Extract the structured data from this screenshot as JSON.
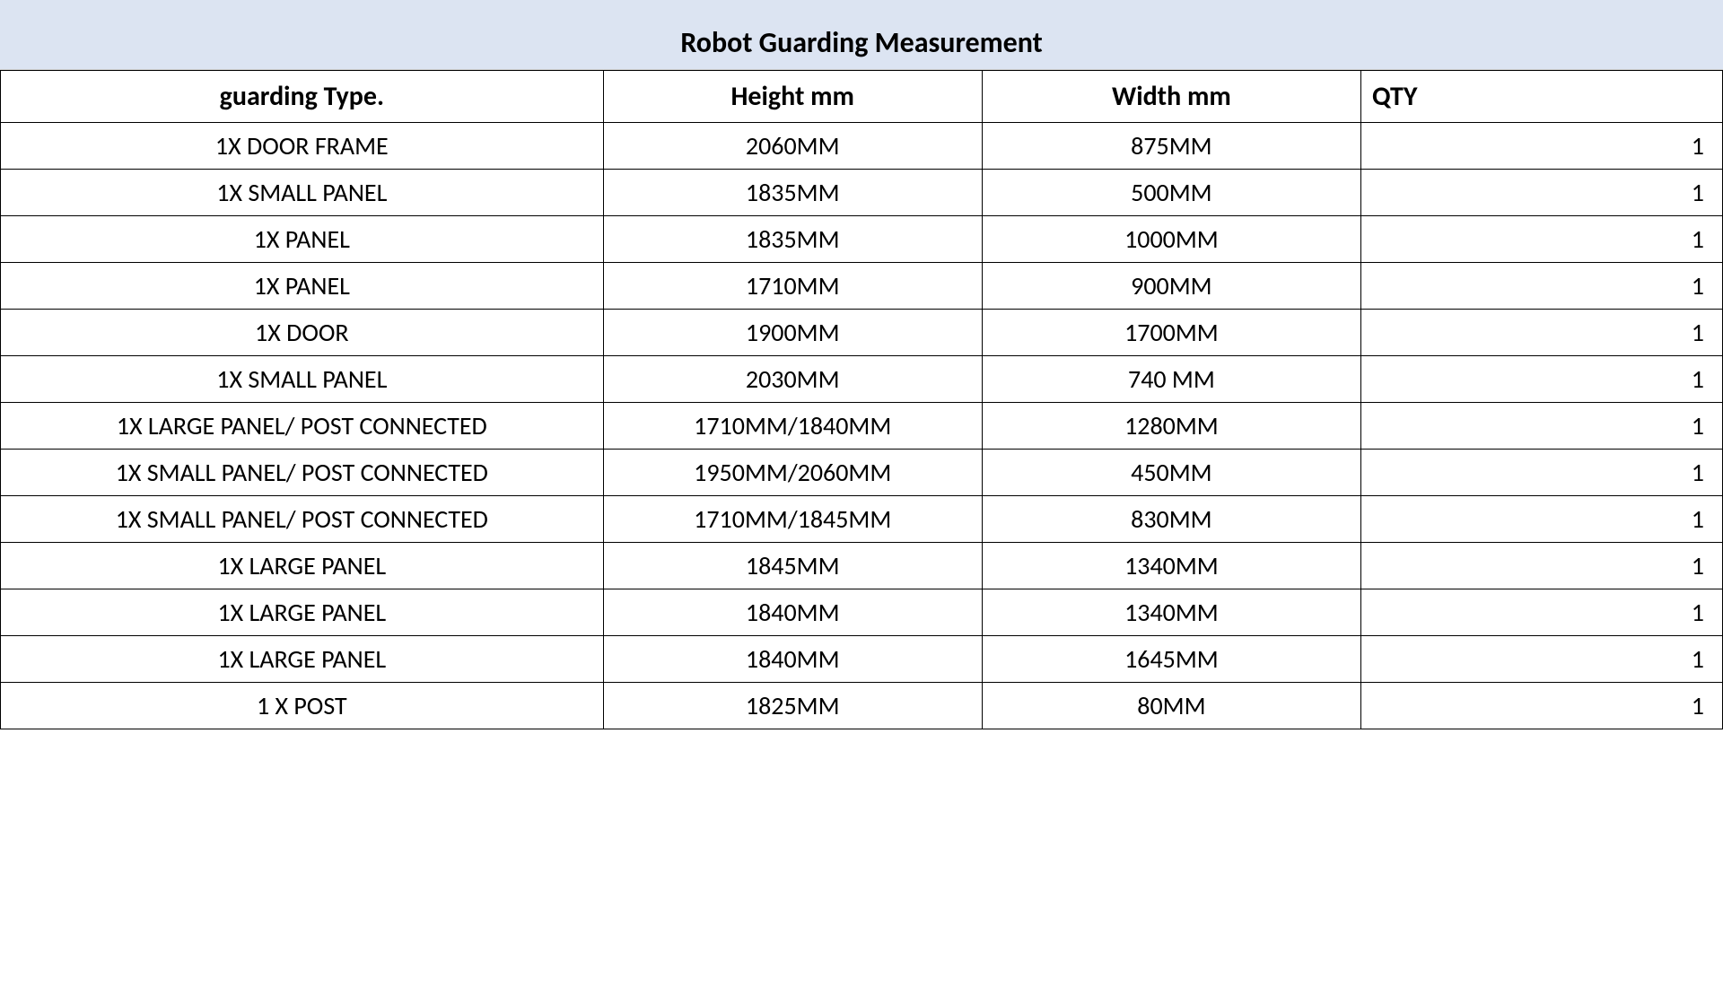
{
  "title": "Robot Guarding Measurement",
  "table": {
    "columns": [
      "guarding Type.",
      "Height mm",
      "Width mm",
      "QTY"
    ],
    "rows": [
      [
        "1X DOOR FRAME",
        "2060MM",
        "875MM",
        "1"
      ],
      [
        "1X SMALL PANEL",
        "1835MM",
        "500MM",
        "1"
      ],
      [
        "1X PANEL",
        "1835MM",
        "1000MM",
        "1"
      ],
      [
        "1X PANEL",
        "1710MM",
        "900MM",
        "1"
      ],
      [
        "1X DOOR",
        "1900MM",
        "1700MM",
        "1"
      ],
      [
        "1X SMALL PANEL",
        "2030MM",
        "740 MM",
        "1"
      ],
      [
        "1X LARGE PANEL/ POST CONNECTED",
        "1710MM/1840MM",
        "1280MM",
        "1"
      ],
      [
        "1X SMALL PANEL/ POST CONNECTED",
        "1950MM/2060MM",
        "450MM",
        "1"
      ],
      [
        "1X SMALL PANEL/ POST CONNECTED",
        "1710MM/1845MM",
        "830MM",
        "1"
      ],
      [
        "1X LARGE PANEL",
        "1845MM",
        "1340MM",
        "1"
      ],
      [
        "1X LARGE PANEL",
        "1840MM",
        "1340MM",
        "1"
      ],
      [
        "1X LARGE PANEL",
        "1840MM",
        "1645MM",
        "1"
      ],
      [
        "1 X POST",
        "1825MM",
        "80MM",
        "1"
      ]
    ]
  },
  "styles": {
    "title_background": "#dce4f2",
    "title_fontsize": 32,
    "header_fontsize": 30,
    "cell_fontsize": 28,
    "border_color": "#000000",
    "text_color": "#000000",
    "column_widths_pct": [
      35,
      22,
      22,
      21
    ],
    "column_alignments": [
      "center",
      "center",
      "center",
      "right"
    ]
  }
}
